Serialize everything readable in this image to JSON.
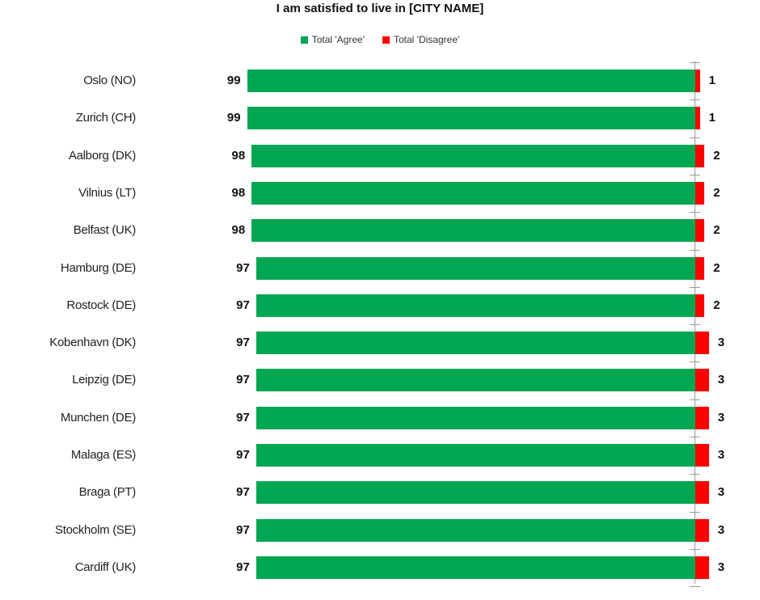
{
  "chart_data": {
    "type": "bar",
    "orientation": "horizontal",
    "stacked": true,
    "title": "I am satisfied to live in [CITY NAME]",
    "xlabel": "",
    "ylabel": "",
    "legend_position": "top",
    "grid": false,
    "categories": [
      "Oslo (NO)",
      "Zurich (CH)",
      "Aalborg (DK)",
      "Vilnius (LT)",
      "Belfast (UK)",
      "Hamburg (DE)",
      "Rostock (DE)",
      "Kobenhavn (DK)",
      "Leipzig (DE)",
      "Munchen (DE)",
      "Malaga (ES)",
      "Braga (PT)",
      "Stockholm (SE)",
      "Cardiff (UK)"
    ],
    "series": [
      {
        "name": "Total 'Agree'",
        "color": "#00a651",
        "values": [
          99,
          99,
          98,
          98,
          98,
          97,
          97,
          97,
          97,
          97,
          97,
          97,
          97,
          97
        ]
      },
      {
        "name": "Total 'Disagree'",
        "color": "#ff0000",
        "values": [
          1,
          1,
          2,
          2,
          2,
          2,
          2,
          3,
          3,
          3,
          3,
          3,
          3,
          3
        ]
      }
    ]
  },
  "title": "I am satisfied to live in [CITY NAME]",
  "legend": [
    {
      "label": "Total 'Agree'",
      "color": "#00a651"
    },
    {
      "label": "Total 'Disagree'",
      "color": "#ff0000"
    }
  ]
}
